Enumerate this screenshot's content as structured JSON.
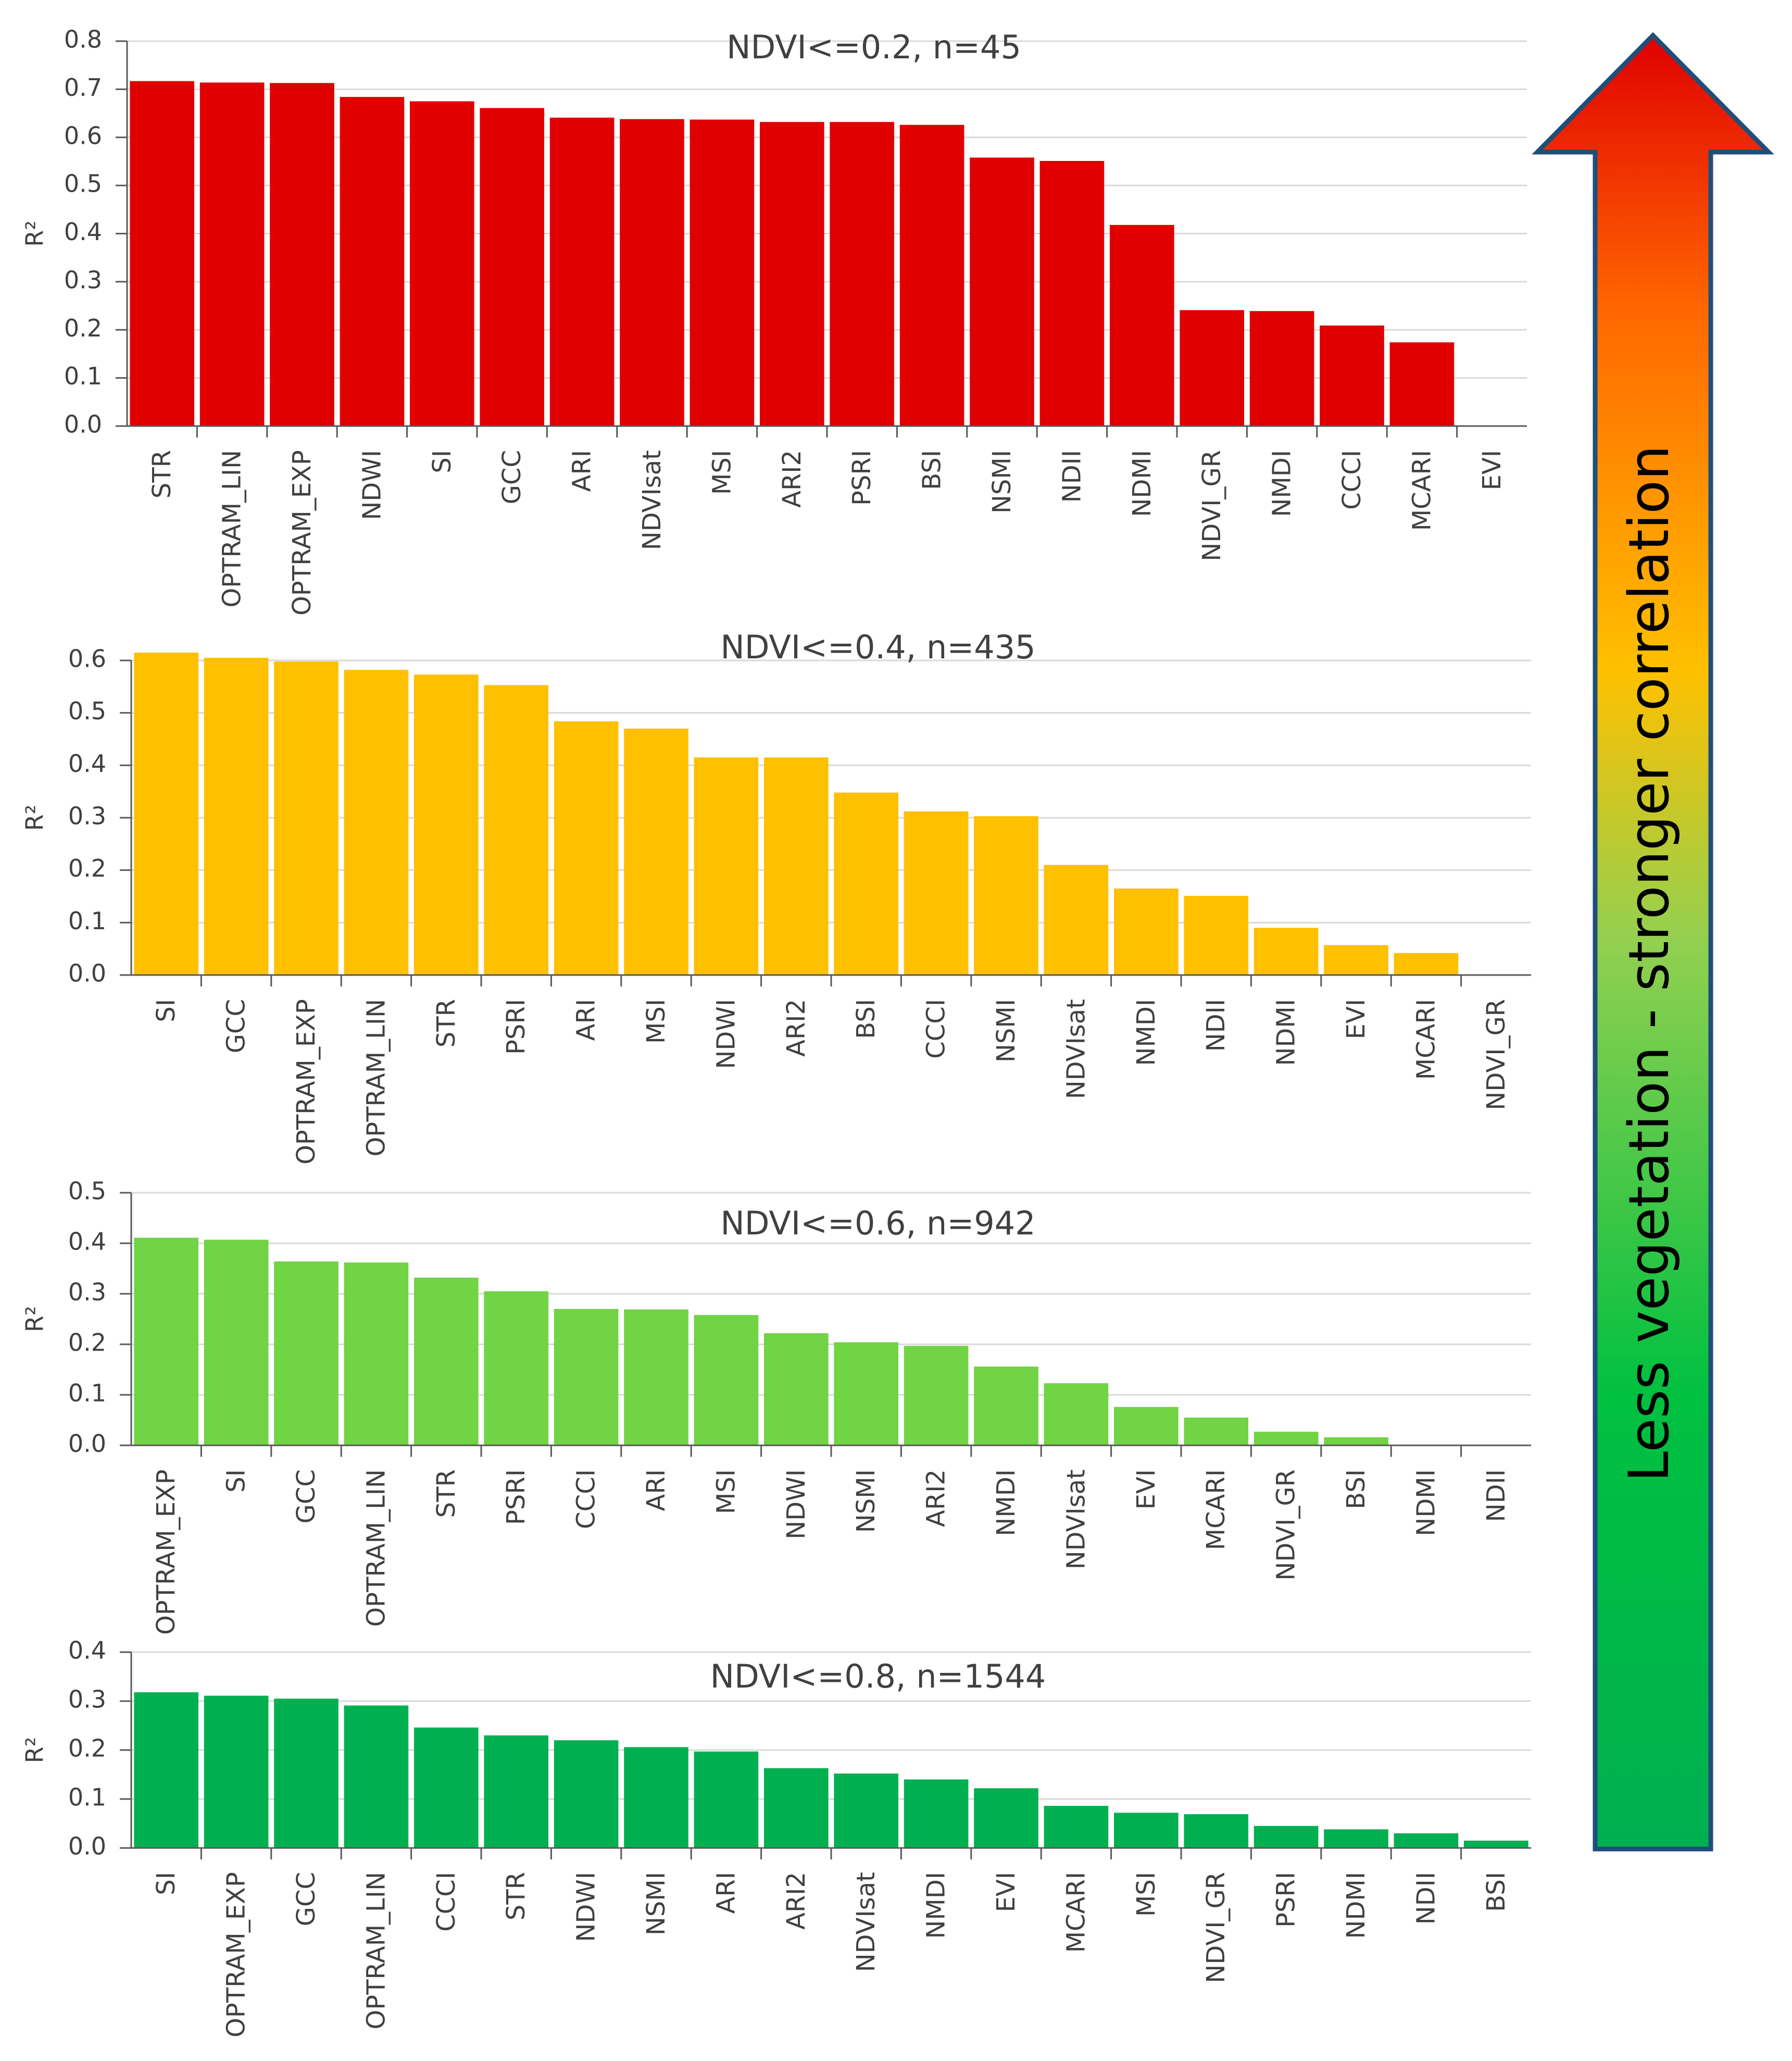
{
  "arrow": {
    "label": "Less vegetation - stronger correlation",
    "colors": [
      "#00b050",
      "#00c040",
      "#92d050",
      "#ffc000",
      "#ff6600",
      "#e00000"
    ],
    "outline": "#1f4e79"
  },
  "chart_data": [
    {
      "type": "bar",
      "title": "NDVI<=0.2, n=45",
      "ylabel": "R²",
      "ylim": [
        0,
        0.8
      ],
      "yticks": [
        "0.0",
        "0.1",
        "0.2",
        "0.3",
        "0.4",
        "0.5",
        "0.6",
        "0.7",
        "0.8"
      ],
      "color": "#e00000",
      "categories": [
        "STR",
        "OPTRAM_LIN",
        "OPTRAM_EXP",
        "NDWI",
        "SI",
        "GCC",
        "ARI",
        "NDVIsat",
        "MSI",
        "ARI2",
        "PSRI",
        "BSI",
        "NSMI",
        "NDII",
        "NDMI",
        "NDVI_GR",
        "NMDI",
        "CCCI",
        "MCARI",
        "EVI"
      ],
      "values": [
        0.717,
        0.714,
        0.713,
        0.684,
        0.675,
        0.661,
        0.641,
        0.638,
        0.637,
        0.632,
        0.632,
        0.626,
        0.558,
        0.551,
        0.418,
        0.241,
        0.239,
        0.209,
        0.174,
        0.0
      ]
    },
    {
      "type": "bar",
      "title": "NDVI<=0.4, n=435",
      "ylabel": "R²",
      "ylim": [
        0,
        0.6
      ],
      "yticks": [
        "0.0",
        "0.1",
        "0.2",
        "0.3",
        "0.4",
        "0.5",
        "0.6"
      ],
      "color": "#ffc000",
      "categories": [
        "SI",
        "GCC",
        "OPTRAM_EXP",
        "OPTRAM_LIN",
        "STR",
        "PSRI",
        "ARI",
        "MSI",
        "NDWI",
        "ARI2",
        "BSI",
        "CCCI",
        "NSMI",
        "NDVIsat",
        "NMDI",
        "NDII",
        "NDMI",
        "EVI",
        "MCARI",
        "NDVI_GR"
      ],
      "values": [
        0.615,
        0.605,
        0.598,
        0.582,
        0.573,
        0.553,
        0.484,
        0.47,
        0.415,
        0.415,
        0.348,
        0.312,
        0.303,
        0.21,
        0.165,
        0.151,
        0.09,
        0.057,
        0.042,
        0.0
      ]
    },
    {
      "type": "bar",
      "title": "NDVI<=0.6, n=942",
      "ylabel": "R²",
      "ylim": [
        0,
        0.5
      ],
      "yticks": [
        "0.0",
        "0.1",
        "0.2",
        "0.3",
        "0.4",
        "0.5"
      ],
      "color": "#70d444",
      "categories": [
        "OPTRAM_EXP",
        "SI",
        "GCC",
        "OPTRAM_LIN",
        "STR",
        "PSRI",
        "CCCI",
        "ARI",
        "MSI",
        "NDWI",
        "NSMI",
        "ARI2",
        "NMDI",
        "NDVIsat",
        "EVI",
        "MCARI",
        "NDVI_GR",
        "BSI",
        "NDMI",
        "NDII"
      ],
      "values": [
        0.411,
        0.407,
        0.364,
        0.362,
        0.332,
        0.305,
        0.27,
        0.269,
        0.258,
        0.222,
        0.204,
        0.197,
        0.156,
        0.123,
        0.076,
        0.055,
        0.027,
        0.016,
        0.0,
        0.0
      ]
    },
    {
      "type": "bar",
      "title": "NDVI<=0.8, n=1544",
      "ylabel": "R²",
      "ylim": [
        0,
        0.4
      ],
      "yticks": [
        "0.0",
        "0.1",
        "0.2",
        "0.3",
        "0.4"
      ],
      "color": "#00b050",
      "categories": [
        "SI",
        "OPTRAM_EXP",
        "GCC",
        "OPTRAM_LIN",
        "CCCI",
        "STR",
        "NDWI",
        "NSMI",
        "ARI",
        "ARI2",
        "NDVIsat",
        "NMDI",
        "EVI",
        "MCARI",
        "MSI",
        "NDVI_GR",
        "PSRI",
        "NDMI",
        "NDII",
        "BSI"
      ],
      "values": [
        0.318,
        0.311,
        0.305,
        0.291,
        0.246,
        0.23,
        0.22,
        0.206,
        0.197,
        0.163,
        0.152,
        0.14,
        0.122,
        0.086,
        0.072,
        0.069,
        0.045,
        0.038,
        0.03,
        0.015
      ]
    }
  ]
}
